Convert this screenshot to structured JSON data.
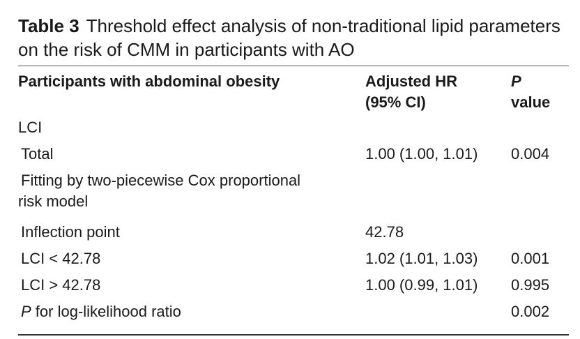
{
  "caption": {
    "label": "Table 3",
    "text": "Threshold effect analysis of non-traditional lipid parameters on the risk of CMM in participants with AO"
  },
  "table": {
    "headers": {
      "col1": "Participants with abdominal obesity",
      "col2_line1": "Adjusted HR",
      "col2_line2": "(95% CI)",
      "col3_line1": "P",
      "col3_line2": "value"
    },
    "rows": [
      {
        "label": "LCI",
        "hr": "",
        "p": ""
      },
      {
        "label": "Total",
        "hr": "1.00 (1.00, 1.01)",
        "p": "0.004"
      },
      {
        "label_line1": "Fitting by two-piecewise Cox proportional",
        "label_line2": "risk model",
        "hr": "",
        "p": ""
      },
      {
        "label": "Inflection point",
        "hr": "42.78",
        "p": ""
      },
      {
        "label": "LCI < 42.78",
        "hr": "1.02 (1.01, 1.03)",
        "p": "0.001"
      },
      {
        "label": "LCI > 42.78",
        "hr": "1.00 (0.99, 1.01)",
        "p": "0.995"
      },
      {
        "label_italic": "P",
        "label_rest": " for log-likelihood ratio",
        "hr": "",
        "p": "0.002"
      }
    ]
  }
}
